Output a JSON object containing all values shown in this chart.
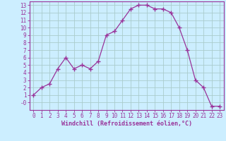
{
  "x": [
    0,
    1,
    2,
    3,
    4,
    5,
    6,
    7,
    8,
    9,
    10,
    11,
    12,
    13,
    14,
    15,
    16,
    17,
    18,
    19,
    20,
    21,
    22,
    23
  ],
  "y": [
    1,
    2,
    2.5,
    4.5,
    6,
    4.5,
    5,
    4.5,
    5.5,
    9,
    9.5,
    11,
    12.5,
    13,
    13,
    12.5,
    12.5,
    12,
    10,
    7,
    3,
    2,
    -0.5,
    -0.5
  ],
  "line_color": "#993399",
  "marker": "+",
  "marker_size": 4,
  "bg_color": "#cceeff",
  "grid_color": "#aacccc",
  "xlabel": "Windchill (Refroidissement éolien,°C)",
  "xlabel_color": "#993399",
  "tick_color": "#993399",
  "spine_color": "#993399",
  "ylim": [
    -1,
    13.5
  ],
  "xlim": [
    -0.5,
    23.5
  ],
  "yticks": [
    0,
    1,
    2,
    3,
    4,
    5,
    6,
    7,
    8,
    9,
    10,
    11,
    12,
    13
  ],
  "ytick_labels": [
    "-0",
    "1",
    "2",
    "3",
    "4",
    "5",
    "6",
    "7",
    "8",
    "9",
    "10",
    "11",
    "12",
    "13"
  ],
  "xticks": [
    0,
    1,
    2,
    3,
    4,
    5,
    6,
    7,
    8,
    9,
    10,
    11,
    12,
    13,
    14,
    15,
    16,
    17,
    18,
    19,
    20,
    21,
    22,
    23
  ]
}
